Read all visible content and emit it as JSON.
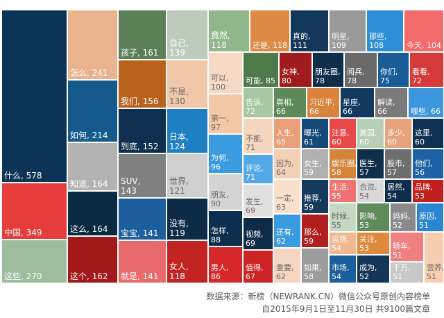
{
  "chart_data": {
    "type": "treemap",
    "unit": "",
    "tiles": [
      {
        "label": "什么",
        "value": 578,
        "color": "#0d3356"
      },
      {
        "label": "中国",
        "value": 349,
        "color": "#e63c3c"
      },
      {
        "label": "这些",
        "value": 270,
        "color": "#9ebd9e"
      },
      {
        "label": "怎么",
        "value": 241,
        "color": "#e9b38f"
      },
      {
        "label": "如何",
        "value": 214,
        "color": "#145a8c"
      },
      {
        "label": "知道",
        "value": 164,
        "color": "#b3b3b3"
      },
      {
        "label": "这么",
        "value": 164,
        "color": "#0a2a44"
      },
      {
        "label": "这个",
        "value": 162,
        "color": "#a31818"
      },
      {
        "label": "孩子",
        "value": 161,
        "color": "#5b7f56"
      },
      {
        "label": "我们",
        "value": 156,
        "color": "#b8621c"
      },
      {
        "label": "到底",
        "value": 152,
        "color": "#0e2f4d"
      },
      {
        "label": "SUV",
        "value": 143,
        "color": "#808080"
      },
      {
        "label": "宝宝",
        "value": 141,
        "color": "#1d5f9e"
      },
      {
        "label": "就是",
        "value": 141,
        "color": "#e86a6a"
      },
      {
        "label": "自己",
        "value": 139,
        "color": "#bccbbc"
      },
      {
        "label": "不是",
        "value": 130,
        "color": "#f1c7a9"
      },
      {
        "label": "日本",
        "value": 124,
        "color": "#1f7fc4"
      },
      {
        "label": "世界",
        "value": 121,
        "color": "#cfcfcf"
      },
      {
        "label": "没有",
        "value": 119,
        "color": "#0c2b47"
      },
      {
        "label": "女人",
        "value": 118,
        "color": "#c22323"
      },
      {
        "label": "竟然",
        "value": 118,
        "color": "#8fb78a"
      },
      {
        "label": "还是",
        "value": 118,
        "color": "#dd8a45"
      },
      {
        "label": "可以",
        "value": 100,
        "color": "#f5d9c3"
      },
      {
        "label": "第一",
        "value": 97,
        "color": "#f3c8a6"
      },
      {
        "label": "为何",
        "value": 96,
        "color": "#3a9be0"
      },
      {
        "label": "朋友",
        "value": 90,
        "color": "#d4d4d4"
      },
      {
        "label": "怎样",
        "value": 88,
        "color": "#0d2f4f"
      },
      {
        "label": "男人",
        "value": 86,
        "color": "#d62828"
      },
      {
        "label": "真的",
        "value": 111,
        "color": "#12375a"
      },
      {
        "label": "明星",
        "value": 109,
        "color": "#9a9a9a"
      },
      {
        "label": "那些",
        "value": 108,
        "color": "#2e8fd6"
      },
      {
        "label": "今天",
        "value": 104,
        "color": "#f26a6a"
      },
      {
        "label": "可能",
        "value": 85,
        "color": "#4f7a4a"
      },
      {
        "label": "女神",
        "value": 80,
        "color": "#a01b1b"
      },
      {
        "label": "朋友圈",
        "value": 78,
        "color": "#0f2e4a"
      },
      {
        "label": "阅兵",
        "value": 78,
        "color": "#6a6a6a"
      },
      {
        "label": "你们",
        "value": 75,
        "color": "#1a5c97"
      },
      {
        "label": "看看",
        "value": 72,
        "color": "#d63a3a"
      },
      {
        "label": "告诉",
        "value": 72,
        "color": "#a8c7a3"
      },
      {
        "label": "真相",
        "value": 66,
        "color": "#5e8a59"
      },
      {
        "label": "习近平",
        "value": 66,
        "color": "#d9833c"
      },
      {
        "label": "星座",
        "value": 66,
        "color": "#123a5f"
      },
      {
        "label": "解读",
        "value": 66,
        "color": "#7a7a7a"
      },
      {
        "label": "哪些",
        "value": 66,
        "color": "#3d95db"
      },
      {
        "label": "不能",
        "value": 71,
        "color": "#f6d5bf"
      },
      {
        "label": "人生",
        "value": 65,
        "color": "#e9a07a"
      },
      {
        "label": "曝光",
        "value": 61,
        "color": "#164a7a"
      },
      {
        "label": "注意",
        "value": 60,
        "color": "#e84848"
      },
      {
        "label": "美国",
        "value": 60,
        "color": "#b7cfb4"
      },
      {
        "label": "多少",
        "value": 60,
        "color": "#e6a37c"
      },
      {
        "label": "这里",
        "value": 60,
        "color": "#0f3252"
      },
      {
        "label": "评论",
        "value": 71,
        "color": "#55a8e6"
      },
      {
        "label": "因为",
        "value": 64,
        "color": "#f4d0b5"
      },
      {
        "label": "女生",
        "value": 59,
        "color": "#b0b0b0"
      },
      {
        "label": "娱乐圈",
        "value": 58,
        "color": "#d6843a"
      },
      {
        "label": "医生",
        "value": 57,
        "color": "#0f2e4a"
      },
      {
        "label": "股市",
        "value": 57,
        "color": "#6e6e6e"
      },
      {
        "label": "他们",
        "value": 56,
        "color": "#1e62a6"
      },
      {
        "label": "发生",
        "value": 69,
        "color": "#e0e0e0"
      },
      {
        "label": "一定",
        "value": 63,
        "color": "#f8e0cd"
      },
      {
        "label": "推荐",
        "value": 59,
        "color": "#163a5c"
      },
      {
        "label": "生活",
        "value": 55,
        "color": "#f07272"
      },
      {
        "label": "合资",
        "value": 54,
        "color": "#d9d9d9"
      },
      {
        "label": "居然",
        "value": 54,
        "color": "#0d2d4b"
      },
      {
        "label": "品牌",
        "value": 53,
        "color": "#c21f1f"
      },
      {
        "label": "时候",
        "value": 55,
        "color": "#c5d8c2"
      },
      {
        "label": "影响",
        "value": 53,
        "color": "#5f8b5a"
      },
      {
        "label": "妈妈",
        "value": 52,
        "color": "#8a8a8a"
      },
      {
        "label": "原因",
        "value": 51,
        "color": "#2a86d1"
      },
      {
        "label": "视频",
        "value": 69,
        "color": "#0c2c48"
      },
      {
        "label": "还有",
        "value": 62,
        "color": "#3a9be0"
      },
      {
        "label": "那么",
        "value": 59,
        "color": "#b01e1e"
      },
      {
        "label": "运势",
        "value": 54,
        "color": "#f0b890"
      },
      {
        "label": "关注",
        "value": 53,
        "color": "#e08a3e"
      },
      {
        "label": "值得",
        "value": 67,
        "color": "#cc2424"
      },
      {
        "label": "重要",
        "value": 62,
        "color": "#f6d6c0"
      },
      {
        "label": "如果",
        "value": 58,
        "color": "#9c9c9c"
      },
      {
        "label": "市场",
        "value": 54,
        "color": "#1a5f9c"
      },
      {
        "label": "成为",
        "value": 52,
        "color": "#133556"
      },
      {
        "label": "轿车",
        "value": 51,
        "color": "#f08080"
      },
      {
        "label": "千万",
        "value": 51,
        "color": "#c8c8c8"
      },
      {
        "label": "营养",
        "value": 51,
        "color": "#f7cfb0"
      }
    ]
  },
  "source": {
    "line1": "数据来源：新榜（NEWRANK.CN）微信公众号原创内容榜单",
    "line2": "自2015年9月1日至11月30日 共9100篇文章"
  }
}
